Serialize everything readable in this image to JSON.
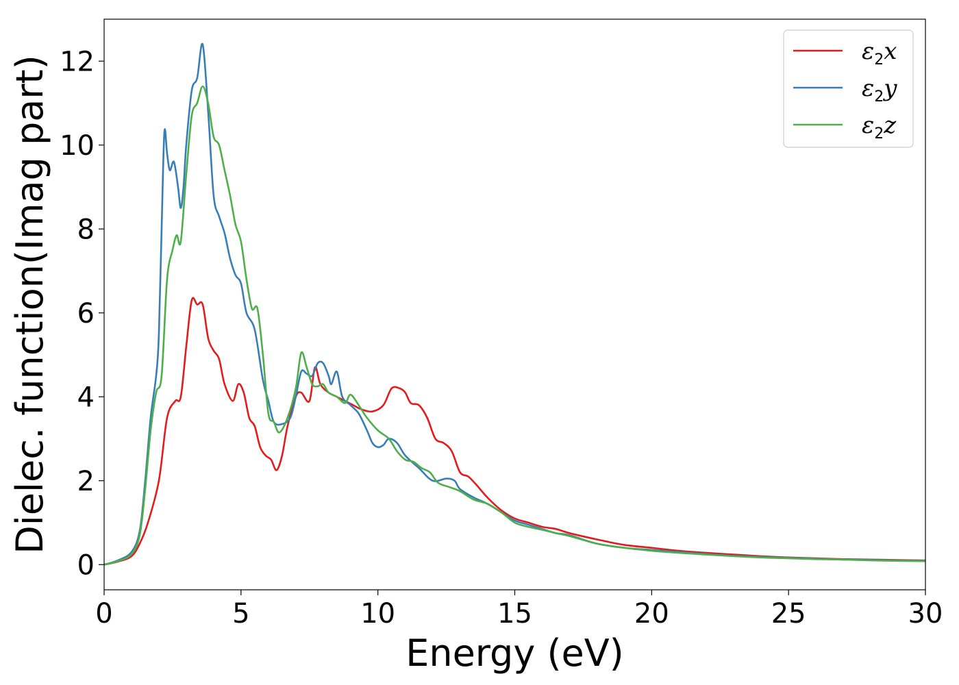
{
  "chart_data": {
    "type": "line",
    "title": "",
    "xlabel": "Energy (eV)",
    "ylabel": "Dielec. function(Imag part)",
    "xlim": [
      0,
      30
    ],
    "ylim": [
      -0.6,
      13.0
    ],
    "xticks": [
      0,
      5,
      10,
      15,
      20,
      25,
      30
    ],
    "yticks": [
      0,
      2,
      4,
      6,
      8,
      10,
      12
    ],
    "grid": false,
    "legend_position": "top-right",
    "series": [
      {
        "name": "ε2x",
        "color": "#e41a1c",
        "points": [
          [
            0,
            0
          ],
          [
            0.5,
            0.07
          ],
          [
            1,
            0.2
          ],
          [
            1.3,
            0.5
          ],
          [
            1.6,
            1.0
          ],
          [
            2,
            2.0
          ],
          [
            2.3,
            3.5
          ],
          [
            2.6,
            3.9
          ],
          [
            2.8,
            4.0
          ],
          [
            3.0,
            5.2
          ],
          [
            3.2,
            6.3
          ],
          [
            3.4,
            6.2
          ],
          [
            3.6,
            6.2
          ],
          [
            3.8,
            5.4
          ],
          [
            4.0,
            5.1
          ],
          [
            4.2,
            4.9
          ],
          [
            4.4,
            4.3
          ],
          [
            4.7,
            3.9
          ],
          [
            4.9,
            4.3
          ],
          [
            5.1,
            4.1
          ],
          [
            5.3,
            3.5
          ],
          [
            5.5,
            3.3
          ],
          [
            5.7,
            2.8
          ],
          [
            5.9,
            2.6
          ],
          [
            6.1,
            2.5
          ],
          [
            6.3,
            2.25
          ],
          [
            6.5,
            2.6
          ],
          [
            6.7,
            3.3
          ],
          [
            7.0,
            4.0
          ],
          [
            7.2,
            4.1
          ],
          [
            7.5,
            3.9
          ],
          [
            7.7,
            4.7
          ],
          [
            7.9,
            4.3
          ],
          [
            8.2,
            4.1
          ],
          [
            8.5,
            4.0
          ],
          [
            8.8,
            3.9
          ],
          [
            9.1,
            3.8
          ],
          [
            9.4,
            3.7
          ],
          [
            9.8,
            3.65
          ],
          [
            10.2,
            3.8
          ],
          [
            10.5,
            4.2
          ],
          [
            10.8,
            4.2
          ],
          [
            11.0,
            4.1
          ],
          [
            11.2,
            3.85
          ],
          [
            11.5,
            3.8
          ],
          [
            11.8,
            3.5
          ],
          [
            12.1,
            3.0
          ],
          [
            12.4,
            2.9
          ],
          [
            12.7,
            2.7
          ],
          [
            13.0,
            2.2
          ],
          [
            13.3,
            2.1
          ],
          [
            13.6,
            1.9
          ],
          [
            14.0,
            1.6
          ],
          [
            14.5,
            1.3
          ],
          [
            15.0,
            1.1
          ],
          [
            15.5,
            1.0
          ],
          [
            16.0,
            0.9
          ],
          [
            16.5,
            0.85
          ],
          [
            17.0,
            0.75
          ],
          [
            18.0,
            0.6
          ],
          [
            19.0,
            0.47
          ],
          [
            20.0,
            0.4
          ],
          [
            21.0,
            0.33
          ],
          [
            22.0,
            0.28
          ],
          [
            23.0,
            0.24
          ],
          [
            24.0,
            0.2
          ],
          [
            25.0,
            0.17
          ],
          [
            26.0,
            0.15
          ],
          [
            27.0,
            0.13
          ],
          [
            28.0,
            0.12
          ],
          [
            29.0,
            0.11
          ],
          [
            30.0,
            0.1
          ]
        ]
      },
      {
        "name": "ε2y",
        "color": "#377eb8",
        "points": [
          [
            0,
            0
          ],
          [
            0.5,
            0.1
          ],
          [
            1,
            0.3
          ],
          [
            1.3,
            0.8
          ],
          [
            1.5,
            2.0
          ],
          [
            1.7,
            3.5
          ],
          [
            1.9,
            4.5
          ],
          [
            2.0,
            5.5
          ],
          [
            2.1,
            8.0
          ],
          [
            2.2,
            10.3
          ],
          [
            2.3,
            9.8
          ],
          [
            2.4,
            9.4
          ],
          [
            2.55,
            9.6
          ],
          [
            2.7,
            9.0
          ],
          [
            2.8,
            8.5
          ],
          [
            2.9,
            9.0
          ],
          [
            3.0,
            10.0
          ],
          [
            3.2,
            11.3
          ],
          [
            3.4,
            11.6
          ],
          [
            3.6,
            12.4
          ],
          [
            3.8,
            10.8
          ],
          [
            4.0,
            8.8
          ],
          [
            4.2,
            8.3
          ],
          [
            4.4,
            7.9
          ],
          [
            4.6,
            7.3
          ],
          [
            4.8,
            6.9
          ],
          [
            5.0,
            6.7
          ],
          [
            5.2,
            6.0
          ],
          [
            5.5,
            5.6
          ],
          [
            5.8,
            4.4
          ],
          [
            6.0,
            3.9
          ],
          [
            6.2,
            3.4
          ],
          [
            6.5,
            3.35
          ],
          [
            6.8,
            3.5
          ],
          [
            7.0,
            4.0
          ],
          [
            7.2,
            4.6
          ],
          [
            7.4,
            4.55
          ],
          [
            7.6,
            4.5
          ],
          [
            7.8,
            4.8
          ],
          [
            8.0,
            4.8
          ],
          [
            8.2,
            4.5
          ],
          [
            8.3,
            4.3
          ],
          [
            8.5,
            4.6
          ],
          [
            8.7,
            4.0
          ],
          [
            9.0,
            3.8
          ],
          [
            9.3,
            3.6
          ],
          [
            9.6,
            3.2
          ],
          [
            9.8,
            2.9
          ],
          [
            10.0,
            2.8
          ],
          [
            10.2,
            2.85
          ],
          [
            10.4,
            3.0
          ],
          [
            10.7,
            2.9
          ],
          [
            11.0,
            2.6
          ],
          [
            11.5,
            2.3
          ],
          [
            12.0,
            2.0
          ],
          [
            12.5,
            2.05
          ],
          [
            12.8,
            2.0
          ],
          [
            13.0,
            1.8
          ],
          [
            13.5,
            1.6
          ],
          [
            14.0,
            1.45
          ],
          [
            14.5,
            1.25
          ],
          [
            15.0,
            1.05
          ],
          [
            15.5,
            0.95
          ],
          [
            16.0,
            0.85
          ],
          [
            16.5,
            0.75
          ],
          [
            17.0,
            0.7
          ],
          [
            18.0,
            0.5
          ],
          [
            19.0,
            0.4
          ],
          [
            20.0,
            0.35
          ],
          [
            21.0,
            0.3
          ],
          [
            22.0,
            0.25
          ],
          [
            23.0,
            0.21
          ],
          [
            24.0,
            0.18
          ],
          [
            25.0,
            0.16
          ],
          [
            26.0,
            0.14
          ],
          [
            27.0,
            0.12
          ],
          [
            28.0,
            0.11
          ],
          [
            29.0,
            0.1
          ],
          [
            30.0,
            0.09
          ]
        ]
      },
      {
        "name": "ε2z",
        "color": "#4daf4a",
        "points": [
          [
            0,
            0
          ],
          [
            0.5,
            0.08
          ],
          [
            1,
            0.25
          ],
          [
            1.3,
            0.7
          ],
          [
            1.5,
            1.8
          ],
          [
            1.7,
            3.2
          ],
          [
            1.9,
            4.1
          ],
          [
            2.1,
            4.5
          ],
          [
            2.3,
            6.8
          ],
          [
            2.5,
            7.5
          ],
          [
            2.65,
            7.85
          ],
          [
            2.8,
            7.7
          ],
          [
            3.0,
            9.3
          ],
          [
            3.2,
            10.7
          ],
          [
            3.4,
            11.0
          ],
          [
            3.6,
            11.4
          ],
          [
            3.8,
            11.0
          ],
          [
            4.0,
            10.2
          ],
          [
            4.2,
            10.0
          ],
          [
            4.4,
            9.4
          ],
          [
            4.6,
            8.8
          ],
          [
            4.8,
            8.1
          ],
          [
            5.0,
            7.7
          ],
          [
            5.2,
            6.8
          ],
          [
            5.4,
            6.1
          ],
          [
            5.6,
            6.1
          ],
          [
            5.8,
            5.0
          ],
          [
            6.0,
            3.6
          ],
          [
            6.2,
            3.4
          ],
          [
            6.4,
            3.15
          ],
          [
            6.7,
            3.5
          ],
          [
            7.0,
            4.2
          ],
          [
            7.2,
            5.05
          ],
          [
            7.4,
            4.7
          ],
          [
            7.6,
            4.3
          ],
          [
            7.8,
            4.25
          ],
          [
            8.0,
            4.3
          ],
          [
            8.2,
            4.1
          ],
          [
            8.5,
            4.0
          ],
          [
            8.8,
            3.85
          ],
          [
            9.0,
            4.05
          ],
          [
            9.3,
            3.8
          ],
          [
            9.6,
            3.5
          ],
          [
            10.0,
            3.2
          ],
          [
            10.4,
            3.0
          ],
          [
            10.7,
            2.7
          ],
          [
            11.0,
            2.5
          ],
          [
            11.3,
            2.45
          ],
          [
            11.6,
            2.3
          ],
          [
            11.9,
            2.2
          ],
          [
            12.2,
            1.95
          ],
          [
            12.6,
            1.85
          ],
          [
            13.0,
            1.75
          ],
          [
            13.5,
            1.55
          ],
          [
            14.0,
            1.45
          ],
          [
            14.5,
            1.25
          ],
          [
            15.0,
            1.0
          ],
          [
            15.5,
            0.9
          ],
          [
            16.0,
            0.83
          ],
          [
            16.5,
            0.75
          ],
          [
            17.0,
            0.68
          ],
          [
            18.0,
            0.5
          ],
          [
            19.0,
            0.4
          ],
          [
            20.0,
            0.33
          ],
          [
            21.0,
            0.28
          ],
          [
            22.0,
            0.24
          ],
          [
            23.0,
            0.2
          ],
          [
            24.0,
            0.17
          ],
          [
            25.0,
            0.15
          ],
          [
            26.0,
            0.13
          ],
          [
            27.0,
            0.12
          ],
          [
            28.0,
            0.1
          ],
          [
            29.0,
            0.09
          ],
          [
            30.0,
            0.08
          ]
        ]
      }
    ]
  }
}
